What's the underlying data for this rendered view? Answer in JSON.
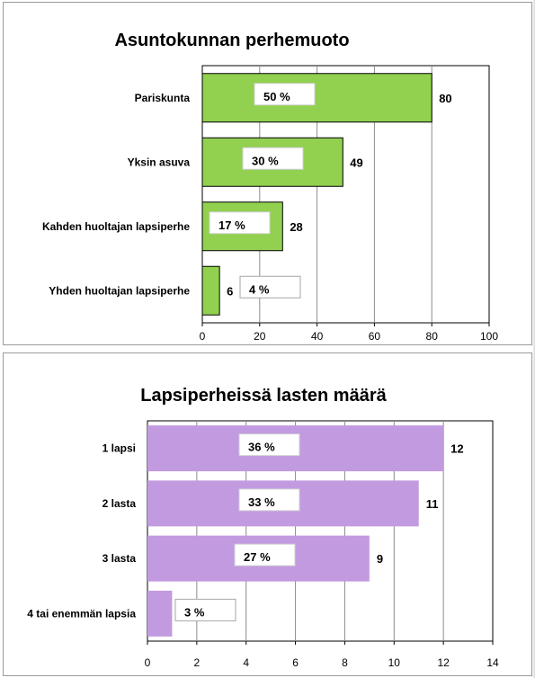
{
  "chart_data": [
    {
      "type": "bar",
      "orientation": "horizontal",
      "title": "Asuntokunnan perhemuoto",
      "categories": [
        "Pariskunta",
        "Yksin asuva",
        "Kahden huoltajan lapsiperhe",
        "Yhden huoltajan lapsiperhe"
      ],
      "values": [
        80,
        49,
        28,
        6
      ],
      "percent_labels": [
        "50 %",
        "30 %",
        "17 %",
        "4 %"
      ],
      "xlim": [
        0,
        100
      ],
      "xticks": [
        0,
        20,
        40,
        60,
        80,
        100
      ],
      "xtick_labels": [
        "0",
        "20",
        "40",
        "60",
        "80",
        "100"
      ],
      "grid": true,
      "bar_color": "#92d050",
      "bar_stroke": "#000000"
    },
    {
      "type": "bar",
      "orientation": "horizontal",
      "title": "Lapsiperheissä lasten määrä",
      "categories": [
        "1 lapsi",
        "2 lasta",
        "3 lasta",
        "4 tai enemmän lapsia"
      ],
      "values": [
        12,
        11,
        9,
        1
      ],
      "value_labels": [
        "12",
        "11",
        "9",
        ""
      ],
      "percent_labels": [
        "36 %",
        "33 %",
        "27 %",
        "3 %"
      ],
      "xlim": [
        0,
        14
      ],
      "xticks": [
        0,
        2,
        4,
        6,
        8,
        10,
        12,
        14
      ],
      "xtick_labels": [
        "0",
        "2",
        "4",
        "6",
        "8",
        "10",
        "12",
        "14"
      ],
      "grid": true,
      "bar_color": "#c29ae0",
      "bar_stroke": "none"
    }
  ]
}
